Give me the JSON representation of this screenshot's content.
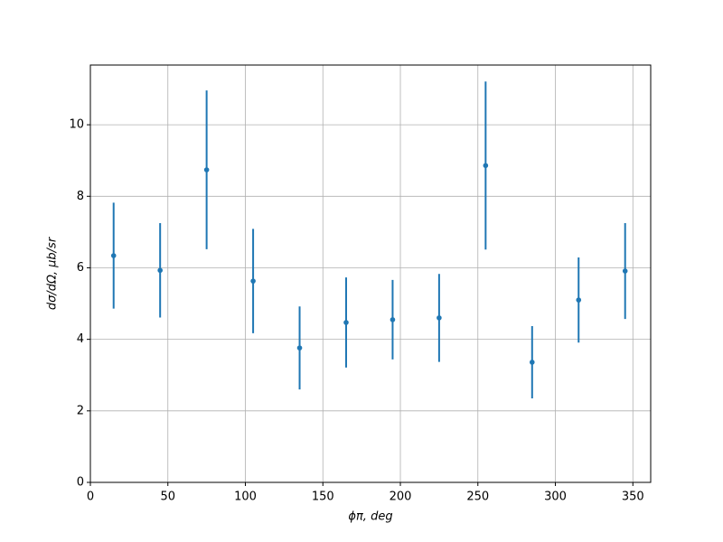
{
  "chart_data": {
    "type": "errorbar",
    "x_label": "ϕπ, deg",
    "y_label": "dσ/dΩ, μb/sr",
    "x": [
      15,
      45,
      75,
      105,
      135,
      165,
      195,
      225,
      255,
      285,
      315,
      345
    ],
    "series": [
      {
        "color": "#1f77b4",
        "values": [
          6.34,
          5.93,
          8.74,
          5.63,
          3.76,
          4.47,
          4.55,
          4.6,
          8.86,
          3.36,
          5.1,
          5.91
        ],
        "errors": [
          1.48,
          1.32,
          2.22,
          1.46,
          1.16,
          1.26,
          1.11,
          1.23,
          2.35,
          1.01,
          1.19,
          1.34
        ]
      }
    ],
    "xlim": [
      0,
      361.5
    ],
    "ylim": [
      0,
      11.67
    ],
    "xticks": [
      0,
      50,
      100,
      150,
      200,
      250,
      300,
      350
    ],
    "yticks": [
      0,
      2,
      4,
      6,
      8,
      10
    ],
    "grid": true
  }
}
